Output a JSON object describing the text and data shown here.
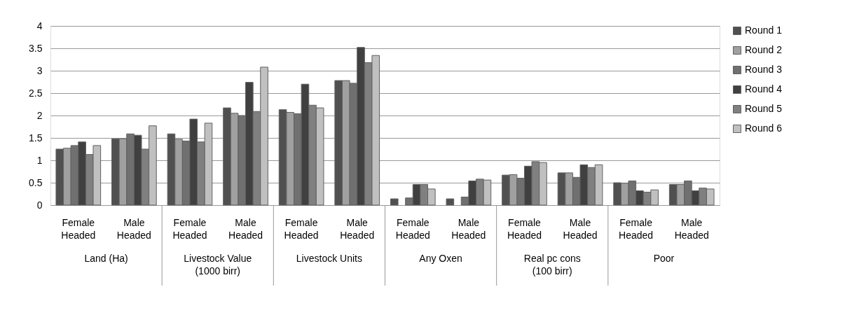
{
  "chart_data": {
    "type": "bar",
    "categories": [
      "Female Headed",
      "Male Headed",
      "Female Headed",
      "Male Headed",
      "Female Headed",
      "Male Headed",
      "Female Headed",
      "Male Headed",
      "Female Headed",
      "Male Headed",
      "Female Headed",
      "Male Headed"
    ],
    "annotations": [
      "Land  (Ha)",
      "Livestock Value (1000 birr)",
      "Livestock Units",
      "Any Oxen",
      "Real pc cons (100 birr)",
      "Poor"
    ],
    "series": [
      {
        "name": "Round 1",
        "color": "#505050",
        "values": [
          1.25,
          1.48,
          1.59,
          2.17,
          2.13,
          2.78,
          0.14,
          0.14,
          0.67,
          0.72,
          0.5,
          0.46
        ]
      },
      {
        "name": "Round 2",
        "color": "#a0a0a0",
        "values": [
          1.27,
          1.48,
          1.47,
          2.05,
          2.07,
          2.78,
          null,
          null,
          0.68,
          0.72,
          0.49,
          0.46
        ]
      },
      {
        "name": "Round 3",
        "color": "#707070",
        "values": [
          1.33,
          1.59,
          1.43,
          2.0,
          2.04,
          2.72,
          0.16,
          0.18,
          0.6,
          0.62,
          0.54,
          0.54
        ]
      },
      {
        "name": "Round 4",
        "color": "#404040",
        "values": [
          1.41,
          1.56,
          1.92,
          2.74,
          2.7,
          3.52,
          0.46,
          0.54,
          0.87,
          0.9,
          0.32,
          0.32
        ]
      },
      {
        "name": "Round 5",
        "color": "#808080",
        "values": [
          1.13,
          1.25,
          1.41,
          2.09,
          2.23,
          3.18,
          0.46,
          0.58,
          0.97,
          0.84,
          0.29,
          0.38
        ]
      },
      {
        "name": "Round 6",
        "color": "#c0c0c0",
        "values": [
          1.33,
          1.77,
          1.83,
          3.08,
          2.17,
          3.34,
          0.36,
          0.56,
          0.95,
          0.9,
          0.34,
          0.36
        ]
      }
    ],
    "ylim": [
      0,
      4
    ],
    "yticks": [
      0,
      0.5,
      1,
      1.5,
      2,
      2.5,
      3,
      3.5,
      4
    ],
    "grid": "y",
    "legend": "right"
  }
}
